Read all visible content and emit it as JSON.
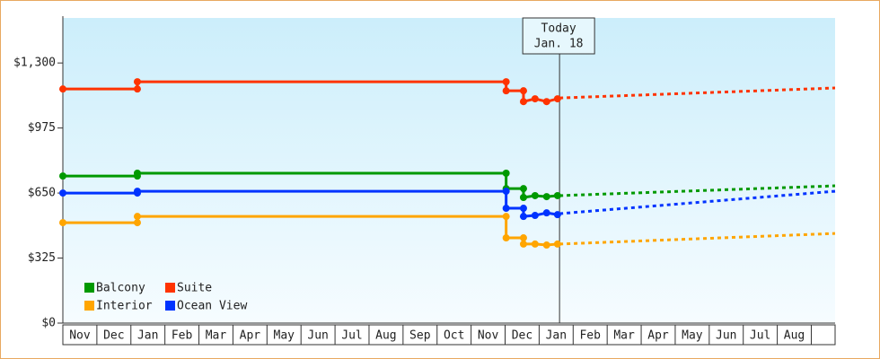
{
  "chart_data": {
    "type": "line",
    "x": [
      0,
      2.19,
      2.19,
      13.03,
      13.03,
      13.54,
      13.54,
      13.88,
      14.22,
      14.54
    ],
    "forecast_x": [
      14.6,
      22.7
    ],
    "series": [
      {
        "name": "Balcony",
        "color": "#009900",
        "values": [
          735,
          735,
          749,
          749,
          672,
          672,
          628,
          637,
          632,
          637
        ],
        "forecast": [
          637,
          686
        ]
      },
      {
        "name": "Suite",
        "color": "#ff3300",
        "values": [
          1170,
          1170,
          1206,
          1206,
          1161,
          1161,
          1107,
          1121,
          1107,
          1121
        ],
        "forecast": [
          1125,
          1175
        ]
      },
      {
        "name": "Interior",
        "color": "#ffa500",
        "values": [
          502,
          502,
          533,
          533,
          426,
          426,
          395,
          395,
          390,
          395
        ],
        "forecast": [
          395,
          448
        ]
      },
      {
        "name": "Ocean View",
        "color": "#0033ff",
        "values": [
          650,
          650,
          659,
          659,
          574,
          574,
          533,
          538,
          551,
          542
        ],
        "forecast": [
          547,
          659
        ]
      }
    ],
    "xlim": [
      0,
      22.7
    ],
    "xticks": [
      {
        "value": 0,
        "label": "Nov"
      },
      {
        "value": 1,
        "label": "Dec"
      },
      {
        "value": 2,
        "label": "Jan"
      },
      {
        "value": 3,
        "label": "Feb"
      },
      {
        "value": 4,
        "label": "Mar"
      },
      {
        "value": 5,
        "label": "Apr"
      },
      {
        "value": 6,
        "label": "May"
      },
      {
        "value": 7,
        "label": "Jun"
      },
      {
        "value": 8,
        "label": "Jul"
      },
      {
        "value": 9,
        "label": "Aug"
      },
      {
        "value": 10,
        "label": "Sep"
      },
      {
        "value": 11,
        "label": "Oct"
      },
      {
        "value": 12,
        "label": "Nov"
      },
      {
        "value": 13,
        "label": "Dec"
      },
      {
        "value": 14,
        "label": "Jan"
      },
      {
        "value": 15,
        "label": "Feb"
      },
      {
        "value": 16,
        "label": "Mar"
      },
      {
        "value": 17,
        "label": "Apr"
      },
      {
        "value": 18,
        "label": "May"
      },
      {
        "value": 19,
        "label": "Jun"
      },
      {
        "value": 20,
        "label": "Jul"
      },
      {
        "value": 21,
        "label": "Aug"
      }
    ],
    "ylim": [
      0,
      1525
    ],
    "yticks": [
      {
        "value": 0,
        "label": "$0"
      },
      {
        "value": 325,
        "label": "$325"
      },
      {
        "value": 650,
        "label": "$650"
      },
      {
        "value": 975,
        "label": "$975"
      },
      {
        "value": 1300,
        "label": "$1,300"
      }
    ],
    "today": {
      "x": 14.6,
      "lines": [
        "Today",
        "Jan. 18"
      ]
    },
    "legend": "lower left"
  }
}
